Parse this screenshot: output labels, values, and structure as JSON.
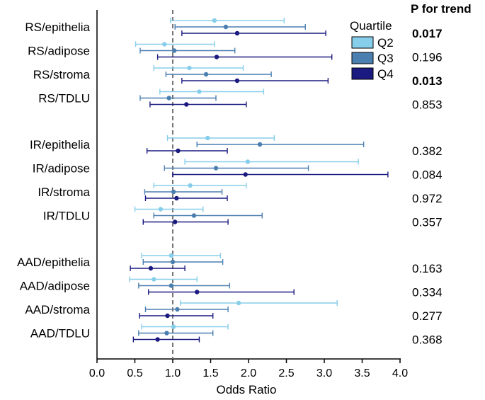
{
  "chart_data": {
    "type": "forest",
    "xlabel": "Odds Ratio",
    "xlim": [
      0.0,
      4.0
    ],
    "xticks": [
      "0.0",
      "0.5",
      "1.0",
      "1.5",
      "2.0",
      "2.5",
      "3.0",
      "3.5",
      "4.0"
    ],
    "xtick_values": [
      0.0,
      0.5,
      1.0,
      1.5,
      2.0,
      2.5,
      3.0,
      3.5,
      4.0
    ],
    "reference_line": 1.0,
    "legend": {
      "title": "Quartile",
      "entries": [
        {
          "name": "Q2",
          "color": "#87CEEB"
        },
        {
          "name": "Q3",
          "color": "#4A7FB0"
        },
        {
          "name": "Q4",
          "color": "#1A1A80"
        }
      ]
    },
    "ptrend_header": "P for trend",
    "rows": [
      {
        "label": "RS/epithelia",
        "p": "0.017",
        "bold": true,
        "Q2": {
          "or": 1.55,
          "lo": 0.97,
          "hi": 2.47
        },
        "Q3": {
          "or": 1.7,
          "lo": 1.03,
          "hi": 2.75
        },
        "Q4": {
          "or": 1.85,
          "lo": 1.12,
          "hi": 3.02
        }
      },
      {
        "label": "RS/adipose",
        "p": "0.196",
        "bold": false,
        "Q2": {
          "or": 0.89,
          "lo": 0.51,
          "hi": 1.55
        },
        "Q3": {
          "or": 1.02,
          "lo": 0.57,
          "hi": 1.82
        },
        "Q4": {
          "or": 1.58,
          "lo": 0.8,
          "hi": 3.1
        }
      },
      {
        "label": "RS/stroma",
        "p": "0.013",
        "bold": true,
        "Q2": {
          "or": 1.22,
          "lo": 0.75,
          "hi": 1.93
        },
        "Q3": {
          "or": 1.44,
          "lo": 0.91,
          "hi": 2.3
        },
        "Q4": {
          "or": 1.85,
          "lo": 1.12,
          "hi": 3.05
        }
      },
      {
        "label": "RS/TDLU",
        "p": "0.853",
        "bold": false,
        "Q2": {
          "or": 1.35,
          "lo": 0.83,
          "hi": 2.2
        },
        "Q3": {
          "or": 0.95,
          "lo": 0.57,
          "hi": 1.57
        },
        "Q4": {
          "or": 1.18,
          "lo": 0.7,
          "hi": 1.97
        }
      },
      {
        "label": "IR/epithelia",
        "p": "0.382",
        "bold": false,
        "Q2": {
          "or": 1.46,
          "lo": 0.93,
          "hi": 2.34
        },
        "Q3": {
          "or": 2.15,
          "lo": 1.32,
          "hi": 3.52
        },
        "Q4": {
          "or": 1.07,
          "lo": 0.66,
          "hi": 1.72
        }
      },
      {
        "label": "IR/adipose",
        "p": "0.084",
        "bold": false,
        "Q2": {
          "or": 1.99,
          "lo": 1.16,
          "hi": 3.45
        },
        "Q3": {
          "or": 1.57,
          "lo": 0.89,
          "hi": 2.79
        },
        "Q4": {
          "or": 1.96,
          "lo": 1.0,
          "hi": 3.84
        }
      },
      {
        "label": "IR/stroma",
        "p": "0.972",
        "bold": false,
        "Q2": {
          "or": 1.23,
          "lo": 0.75,
          "hi": 1.97
        },
        "Q3": {
          "or": 1.01,
          "lo": 0.63,
          "hi": 1.65
        },
        "Q4": {
          "or": 1.05,
          "lo": 0.64,
          "hi": 1.72
        }
      },
      {
        "label": "IR/TDLU",
        "p": "0.357",
        "bold": false,
        "Q2": {
          "or": 0.84,
          "lo": 0.5,
          "hi": 1.4
        },
        "Q3": {
          "or": 1.28,
          "lo": 0.75,
          "hi": 2.18
        },
        "Q4": {
          "or": 1.03,
          "lo": 0.61,
          "hi": 1.73
        }
      },
      {
        "label": "AAD/epithelia",
        "p": "0.163",
        "bold": false,
        "Q2": {
          "or": 0.98,
          "lo": 0.59,
          "hi": 1.63
        },
        "Q3": {
          "or": 1.0,
          "lo": 0.61,
          "hi": 1.66
        },
        "Q4": {
          "or": 0.71,
          "lo": 0.44,
          "hi": 1.16
        }
      },
      {
        "label": "AAD/adipose",
        "p": "0.334",
        "bold": false,
        "Q2": {
          "or": 0.75,
          "lo": 0.43,
          "hi": 1.32
        },
        "Q3": {
          "or": 0.98,
          "lo": 0.55,
          "hi": 1.75
        },
        "Q4": {
          "or": 1.32,
          "lo": 0.68,
          "hi": 2.6
        }
      },
      {
        "label": "AAD/stroma",
        "p": "0.277",
        "bold": false,
        "Q2": {
          "or": 1.87,
          "lo": 1.1,
          "hi": 3.17
        },
        "Q3": {
          "or": 1.06,
          "lo": 0.64,
          "hi": 1.73
        },
        "Q4": {
          "or": 0.93,
          "lo": 0.56,
          "hi": 1.53
        }
      },
      {
        "label": "AAD/TDLU",
        "p": "0.368",
        "bold": false,
        "Q2": {
          "or": 1.01,
          "lo": 0.59,
          "hi": 1.73
        },
        "Q3": {
          "or": 0.92,
          "lo": 0.55,
          "hi": 1.53
        },
        "Q4": {
          "or": 0.8,
          "lo": 0.48,
          "hi": 1.35
        }
      }
    ]
  }
}
